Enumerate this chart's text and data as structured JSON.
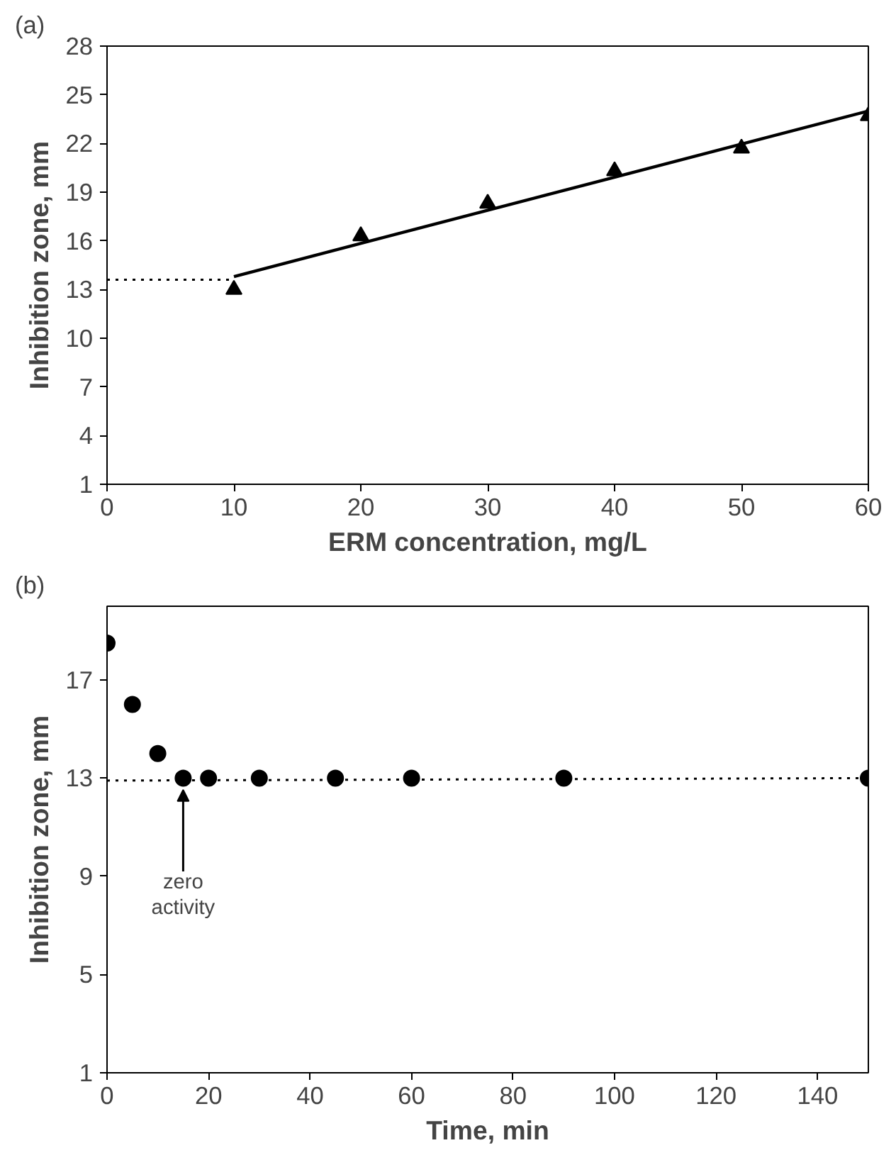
{
  "chart_data": [
    {
      "type": "scatter",
      "title": "(a)",
      "xlabel": "ERM concentration, mg/L",
      "ylabel": "Inhibition zone, mm",
      "xlim": [
        0,
        60
      ],
      "ylim": [
        1,
        28
      ],
      "xticks": [
        0,
        10,
        20,
        30,
        40,
        50,
        60
      ],
      "yticks": [
        1,
        4,
        7,
        10,
        13,
        16,
        19,
        22,
        25,
        28
      ],
      "grid": false,
      "series": [
        {
          "marker": "triangle",
          "color": "#000000",
          "x": [
            10,
            20,
            30,
            40,
            50,
            60
          ],
          "values": [
            13.0,
            16.3,
            18.3,
            20.3,
            21.7,
            23.7
          ]
        },
        {
          "type": "line",
          "marker": "none",
          "line_style": "solid",
          "color": "#000000",
          "x": [
            10,
            60
          ],
          "values": [
            13.8,
            24.0
          ]
        },
        {
          "type": "line",
          "marker": "none",
          "line_style": "dotted",
          "color": "#000000",
          "x": [
            0,
            10
          ],
          "values": [
            13.6,
            13.6
          ]
        }
      ]
    },
    {
      "type": "scatter",
      "title": "(b)",
      "xlabel": "Time, min",
      "ylabel": "Inhibition zone, mm",
      "xlim": [
        0,
        150
      ],
      "ylim": [
        1,
        20
      ],
      "xticks": [
        0,
        20,
        40,
        60,
        80,
        100,
        120,
        140
      ],
      "yticks": [
        1,
        5,
        9,
        13,
        17
      ],
      "grid": false,
      "annotations": [
        {
          "text": "zero activity",
          "x": 15,
          "y": 13
        }
      ],
      "series": [
        {
          "type": "line",
          "marker": "none",
          "line_style": "dotted",
          "color": "#000000",
          "x": [
            0,
            150
          ],
          "values": [
            12.9,
            13.0
          ]
        },
        {
          "marker": "circle",
          "color": "#000000",
          "x": [
            0,
            5,
            10,
            15,
            20,
            30,
            45,
            60,
            90,
            150
          ],
          "values": [
            18.5,
            16.0,
            14.0,
            13.0,
            13.0,
            13.0,
            13.0,
            13.0,
            13.0,
            13.0
          ]
        }
      ]
    }
  ]
}
